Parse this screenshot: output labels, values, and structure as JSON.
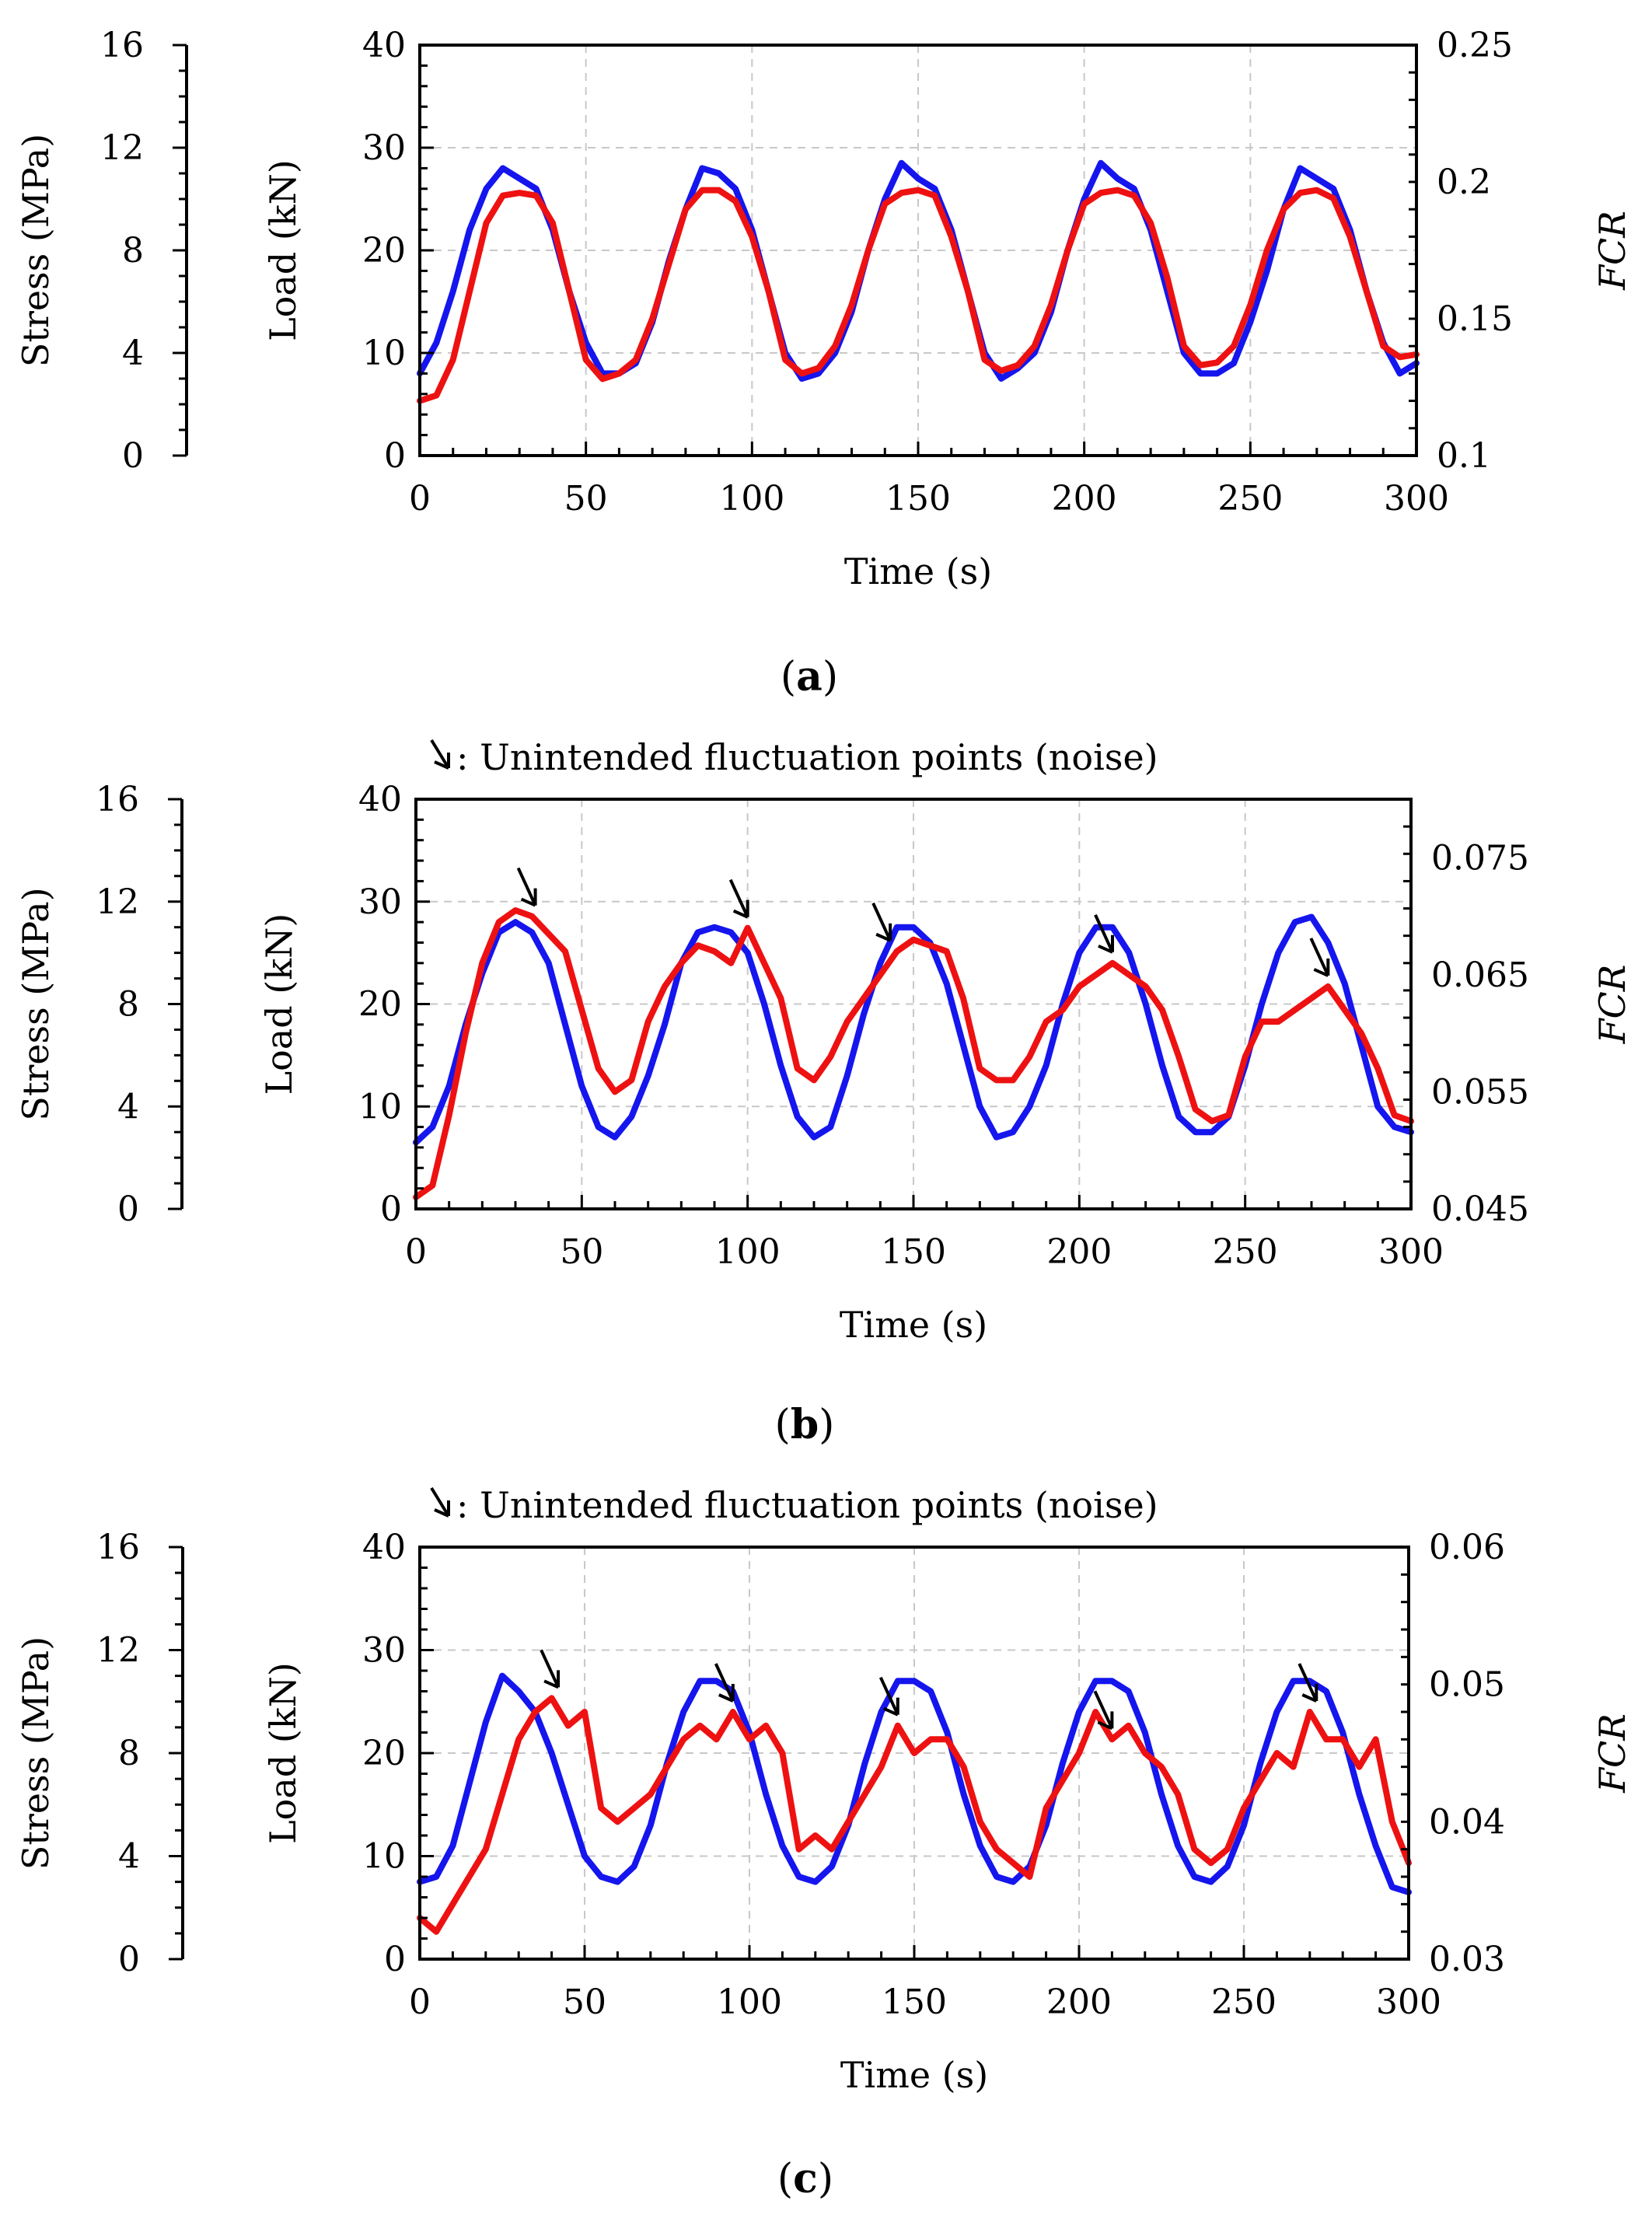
{
  "colors": {
    "load": "#1515ee",
    "fcr": "#ee1111",
    "arrow": "#000000",
    "grid": "#c8c8c8"
  },
  "chart_data": [
    {
      "type": "line",
      "panel_label": "a",
      "note_text": "",
      "xlabel": "Time (s)",
      "ylabel_left": "Load (kN)",
      "ylabel_stress": "Stress (MPa)",
      "ylabel_right": "FCR",
      "xlim": [
        0,
        300
      ],
      "ylim": [
        0,
        40
      ],
      "ylim_stress": [
        0,
        16
      ],
      "ylim_right": [
        0.1,
        0.25
      ],
      "x_ticks": [
        "0",
        "50",
        "100",
        "150",
        "200",
        "250",
        "300"
      ],
      "y_ticks": [
        "0",
        "10",
        "20",
        "30",
        "40"
      ],
      "stress_ticks": [
        "0",
        "4",
        "8",
        "12",
        "16"
      ],
      "right_ticks": [
        "0.1",
        "0.15",
        "0.2",
        "0.25"
      ],
      "grid": true,
      "series": [
        {
          "name": "Load",
          "axis": "left",
          "x": [
            0,
            5,
            10,
            15,
            20,
            25,
            30,
            35,
            40,
            45,
            50,
            55,
            60,
            65,
            70,
            75,
            80,
            85,
            90,
            95,
            100,
            105,
            110,
            115,
            120,
            125,
            130,
            135,
            140,
            145,
            150,
            155,
            160,
            165,
            170,
            175,
            180,
            185,
            190,
            195,
            200,
            205,
            210,
            215,
            220,
            225,
            230,
            235,
            240,
            245,
            250,
            255,
            260,
            265,
            270,
            275,
            280,
            285,
            290,
            295,
            300
          ],
          "y": [
            8,
            11,
            16,
            22,
            26,
            28,
            27,
            26,
            22,
            16,
            11,
            8,
            8,
            9,
            13,
            19,
            24,
            28,
            27.5,
            26,
            22,
            16,
            10,
            7.5,
            8,
            10,
            14,
            20,
            25,
            28.5,
            27,
            26,
            22,
            16,
            10,
            7.5,
            8.5,
            10,
            14,
            20,
            25,
            28.5,
            27,
            26,
            22,
            16,
            10,
            8,
            8,
            9,
            13,
            18,
            24,
            28,
            27,
            26,
            22,
            16,
            11,
            8,
            9
          ]
        },
        {
          "name": "FCR",
          "axis": "right",
          "x": [
            0,
            5,
            10,
            15,
            20,
            25,
            30,
            35,
            40,
            45,
            50,
            55,
            60,
            65,
            70,
            75,
            80,
            85,
            90,
            95,
            100,
            105,
            110,
            115,
            120,
            125,
            130,
            135,
            140,
            145,
            150,
            155,
            160,
            165,
            170,
            175,
            180,
            185,
            190,
            195,
            200,
            205,
            210,
            215,
            220,
            225,
            230,
            235,
            240,
            245,
            250,
            255,
            260,
            265,
            270,
            275,
            280,
            285,
            290,
            295,
            300
          ],
          "y": [
            0.12,
            0.122,
            0.135,
            0.16,
            0.185,
            0.195,
            0.196,
            0.195,
            0.185,
            0.16,
            0.135,
            0.128,
            0.13,
            0.135,
            0.15,
            0.17,
            0.19,
            0.197,
            0.197,
            0.193,
            0.18,
            0.16,
            0.135,
            0.13,
            0.132,
            0.14,
            0.155,
            0.175,
            0.192,
            0.196,
            0.197,
            0.195,
            0.18,
            0.16,
            0.135,
            0.131,
            0.133,
            0.14,
            0.155,
            0.175,
            0.192,
            0.196,
            0.197,
            0.195,
            0.185,
            0.165,
            0.14,
            0.133,
            0.134,
            0.14,
            0.155,
            0.175,
            0.19,
            0.196,
            0.197,
            0.194,
            0.18,
            0.16,
            0.14,
            0.136,
            0.137
          ]
        }
      ],
      "arrows": []
    },
    {
      "type": "line",
      "panel_label": "b",
      "note_text": ": Unintended fluctuation points (noise)",
      "xlabel": "Time (s)",
      "ylabel_left": "Load (kN)",
      "ylabel_stress": "Stress (MPa)",
      "ylabel_right": "FCR",
      "xlim": [
        0,
        300
      ],
      "ylim": [
        0,
        40
      ],
      "ylim_stress": [
        0,
        16
      ],
      "ylim_right": [
        0.045,
        0.08
      ],
      "x_ticks": [
        "0",
        "50",
        "100",
        "150",
        "200",
        "250",
        "300"
      ],
      "y_ticks": [
        "0",
        "10",
        "20",
        "30",
        "40"
      ],
      "stress_ticks": [
        "0",
        "4",
        "8",
        "12",
        "16"
      ],
      "right_ticks": [
        "0.045",
        "0.055",
        "0.065",
        "0.075"
      ],
      "right_tick_values": [
        0.045,
        0.055,
        0.065,
        0.075
      ],
      "grid": true,
      "series": [
        {
          "name": "Load",
          "axis": "left",
          "x": [
            0,
            5,
            10,
            15,
            20,
            25,
            30,
            35,
            40,
            45,
            50,
            55,
            60,
            65,
            70,
            75,
            80,
            85,
            90,
            95,
            100,
            105,
            110,
            115,
            120,
            125,
            130,
            135,
            140,
            145,
            150,
            155,
            160,
            165,
            170,
            175,
            180,
            185,
            190,
            195,
            200,
            205,
            210,
            215,
            220,
            225,
            230,
            235,
            240,
            245,
            250,
            255,
            260,
            265,
            270,
            275,
            280,
            285,
            290,
            295,
            300
          ],
          "y": [
            6.5,
            8,
            12,
            18,
            23,
            27,
            28,
            27,
            24,
            18,
            12,
            8,
            7,
            9,
            13,
            18,
            24,
            27,
            27.5,
            27,
            25,
            20,
            14,
            9,
            7,
            8,
            13,
            19,
            24,
            27.5,
            27.5,
            26,
            22,
            16,
            10,
            7,
            7.5,
            10,
            14,
            20,
            25,
            27.5,
            27.5,
            25,
            20,
            14,
            9,
            7.5,
            7.5,
            9,
            14,
            20,
            25,
            28,
            28.5,
            26,
            22,
            16,
            10,
            8,
            7.5
          ]
        },
        {
          "name": "FCR",
          "axis": "right",
          "x": [
            0,
            5,
            10,
            15,
            20,
            25,
            30,
            35,
            40,
            45,
            50,
            55,
            60,
            65,
            70,
            75,
            80,
            85,
            90,
            95,
            100,
            105,
            110,
            115,
            120,
            125,
            130,
            135,
            140,
            145,
            150,
            155,
            160,
            165,
            170,
            175,
            180,
            185,
            190,
            195,
            200,
            205,
            210,
            215,
            220,
            225,
            230,
            235,
            240,
            245,
            250,
            255,
            260,
            265,
            270,
            275,
            280,
            285,
            290,
            295,
            300
          ],
          "y": [
            0.046,
            0.047,
            0.053,
            0.06,
            0.066,
            0.0695,
            0.0705,
            0.07,
            0.0685,
            0.067,
            0.062,
            0.057,
            0.055,
            0.056,
            0.061,
            0.064,
            0.066,
            0.0675,
            0.067,
            0.066,
            0.069,
            0.066,
            0.063,
            0.057,
            0.056,
            0.058,
            0.061,
            0.063,
            0.065,
            0.067,
            0.068,
            0.0675,
            0.067,
            0.063,
            0.057,
            0.056,
            0.056,
            0.058,
            0.061,
            0.062,
            0.064,
            0.065,
            0.066,
            0.065,
            0.064,
            0.062,
            0.058,
            0.0535,
            0.0525,
            0.053,
            0.058,
            0.061,
            0.061,
            0.062,
            0.063,
            0.064,
            0.062,
            0.06,
            0.057,
            0.053,
            0.0525
          ]
        }
      ],
      "arrows": [
        36,
        100,
        143,
        210,
        275
      ]
    },
    {
      "type": "line",
      "panel_label": "c",
      "note_text": ": Unintended fluctuation points (noise)",
      "xlabel": "Time (s)",
      "ylabel_left": "Load (kN)",
      "ylabel_stress": "Stress (MPa)",
      "ylabel_right": "FCR",
      "xlim": [
        0,
        300
      ],
      "ylim": [
        0,
        40
      ],
      "ylim_stress": [
        0,
        16
      ],
      "ylim_right": [
        0.03,
        0.06
      ],
      "x_ticks": [
        "0",
        "50",
        "100",
        "150",
        "200",
        "250",
        "300"
      ],
      "y_ticks": [
        "0",
        "10",
        "20",
        "30",
        "40"
      ],
      "stress_ticks": [
        "0",
        "4",
        "8",
        "12",
        "16"
      ],
      "right_ticks": [
        "0.03",
        "0.04",
        "0.05",
        "0.06"
      ],
      "grid": true,
      "series": [
        {
          "name": "Load",
          "axis": "left",
          "x": [
            0,
            5,
            10,
            15,
            20,
            25,
            30,
            35,
            40,
            45,
            50,
            55,
            60,
            65,
            70,
            75,
            80,
            85,
            90,
            95,
            100,
            105,
            110,
            115,
            120,
            125,
            130,
            135,
            140,
            145,
            150,
            155,
            160,
            165,
            170,
            175,
            180,
            185,
            190,
            195,
            200,
            205,
            210,
            215,
            220,
            225,
            230,
            235,
            240,
            245,
            250,
            255,
            260,
            265,
            270,
            275,
            280,
            285,
            290,
            295,
            300
          ],
          "y": [
            7.5,
            8,
            11,
            17,
            23,
            27.5,
            26,
            24,
            20,
            15,
            10,
            8,
            7.5,
            9,
            13,
            19,
            24,
            27,
            27,
            26,
            22,
            16,
            11,
            8,
            7.5,
            9,
            13,
            19,
            24,
            27,
            27,
            26,
            22,
            16,
            11,
            8,
            7.5,
            9,
            13,
            19,
            24,
            27,
            27,
            26,
            22,
            16,
            11,
            8,
            7.5,
            9,
            13,
            19,
            24,
            27,
            27,
            26,
            22,
            16,
            11,
            7,
            6.5
          ]
        },
        {
          "name": "FCR",
          "axis": "right",
          "x": [
            0,
            5,
            10,
            15,
            20,
            25,
            30,
            35,
            40,
            45,
            50,
            55,
            60,
            65,
            70,
            75,
            80,
            85,
            90,
            95,
            100,
            105,
            110,
            115,
            120,
            125,
            130,
            135,
            140,
            145,
            150,
            155,
            160,
            165,
            170,
            175,
            180,
            185,
            190,
            195,
            200,
            205,
            210,
            215,
            220,
            225,
            230,
            235,
            240,
            245,
            250,
            255,
            260,
            265,
            270,
            275,
            280,
            285,
            290,
            295,
            300
          ],
          "y": [
            0.033,
            0.032,
            0.034,
            0.036,
            0.038,
            0.042,
            0.046,
            0.048,
            0.049,
            0.047,
            0.048,
            0.041,
            0.04,
            0.041,
            0.042,
            0.044,
            0.046,
            0.047,
            0.046,
            0.048,
            0.046,
            0.047,
            0.045,
            0.038,
            0.039,
            0.038,
            0.04,
            0.042,
            0.044,
            0.047,
            0.045,
            0.046,
            0.046,
            0.044,
            0.04,
            0.038,
            0.037,
            0.036,
            0.041,
            0.043,
            0.045,
            0.048,
            0.046,
            0.047,
            0.045,
            0.044,
            0.042,
            0.038,
            0.037,
            0.038,
            0.041,
            0.043,
            0.045,
            0.044,
            0.048,
            0.046,
            0.046,
            0.044,
            0.046,
            0.04,
            0.037
          ]
        }
      ],
      "arrows": [
        42,
        95,
        145,
        210,
        272
      ]
    }
  ]
}
